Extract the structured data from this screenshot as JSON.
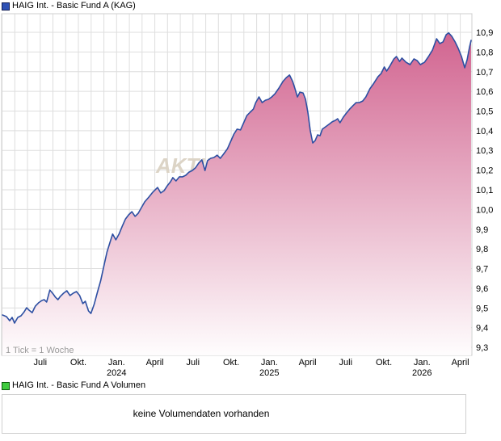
{
  "header": {
    "title": "HAIG Int. - Basic Fund A (KAG)"
  },
  "volume_section": {
    "title": "HAIG Int. - Basic Fund A Volumen",
    "legend_color": "#3ecb3e",
    "message": "keine Volumendaten vorhanden"
  },
  "chart_data": {
    "type": "area",
    "title": "HAIG Int. - Basic Fund A (KAG)",
    "tick_note": "1 Tick = 1 Woche",
    "watermark": "AKTIENCHECK.DE",
    "line_color": "#2d4fa2",
    "fill_top_color": "#cf5c8a",
    "fill_bottom_color": "#ffffff",
    "grid_color": "#dedede",
    "border_color": "#cfcfcf",
    "x_range": [
      2023.263,
      2026.321
    ],
    "x_ticks": [
      {
        "t": 2023.5,
        "label": "Juli"
      },
      {
        "t": 2023.75,
        "label": "Okt."
      },
      {
        "t": 2024.0,
        "label": "Jan.",
        "year": "2024"
      },
      {
        "t": 2024.25,
        "label": "April"
      },
      {
        "t": 2024.5,
        "label": "Juli"
      },
      {
        "t": 2024.75,
        "label": "Okt."
      },
      {
        "t": 2025.0,
        "label": "Jan.",
        "year": "2025"
      },
      {
        "t": 2025.25,
        "label": "April"
      },
      {
        "t": 2025.5,
        "label": "Juli"
      },
      {
        "t": 2025.75,
        "label": "Okt."
      },
      {
        "t": 2026.0,
        "label": "Jan.",
        "year": "2026"
      },
      {
        "t": 2026.25,
        "label": "April"
      }
    ],
    "y_ticks": [
      {
        "v": 10.9,
        "label": "10,9"
      },
      {
        "v": 10.8,
        "label": "10,8"
      },
      {
        "v": 10.7,
        "label": "10,7"
      },
      {
        "v": 10.6,
        "label": "10,6"
      },
      {
        "v": 10.5,
        "label": "10,5"
      },
      {
        "v": 10.4,
        "label": "10,4"
      },
      {
        "v": 10.3,
        "label": "10,3"
      },
      {
        "v": 10.2,
        "label": "10,2"
      },
      {
        "v": 10.1,
        "label": "10,1"
      },
      {
        "v": 10.0,
        "label": "10,0"
      },
      {
        "v": 9.9,
        "label": "9,9"
      },
      {
        "v": 9.8,
        "label": "9,8"
      },
      {
        "v": 9.7,
        "label": "9,7"
      },
      {
        "v": 9.6,
        "label": "9,6"
      },
      {
        "v": 9.5,
        "label": "9,5"
      },
      {
        "v": 9.4,
        "label": "9,4"
      },
      {
        "v": 9.3,
        "label": "9,3"
      }
    ],
    "series": [
      {
        "name": "HAIG Int. - Basic Fund A (KAG)",
        "points": [
          [
            2023.253,
            9.464
          ],
          [
            2023.279,
            9.456
          ],
          [
            2023.3,
            9.435
          ],
          [
            2023.316,
            9.452
          ],
          [
            2023.332,
            9.423
          ],
          [
            2023.353,
            9.452
          ],
          [
            2023.374,
            9.46
          ],
          [
            2023.395,
            9.48
          ],
          [
            2023.411,
            9.501
          ],
          [
            2023.426,
            9.489
          ],
          [
            2023.447,
            9.476
          ],
          [
            2023.468,
            9.509
          ],
          [
            2023.489,
            9.526
          ],
          [
            2023.511,
            9.538
          ],
          [
            2023.526,
            9.542
          ],
          [
            2023.542,
            9.53
          ],
          [
            2023.563,
            9.591
          ],
          [
            2023.584,
            9.571
          ],
          [
            2023.6,
            9.554
          ],
          [
            2023.616,
            9.542
          ],
          [
            2023.632,
            9.559
          ],
          [
            2023.653,
            9.575
          ],
          [
            2023.674,
            9.587
          ],
          [
            2023.695,
            9.563
          ],
          [
            2023.716,
            9.575
          ],
          [
            2023.737,
            9.583
          ],
          [
            2023.758,
            9.563
          ],
          [
            2023.779,
            9.522
          ],
          [
            2023.795,
            9.534
          ],
          [
            2023.816,
            9.485
          ],
          [
            2023.832,
            9.472
          ],
          [
            2023.853,
            9.518
          ],
          [
            2023.874,
            9.579
          ],
          [
            2023.895,
            9.637
          ],
          [
            2023.916,
            9.71
          ],
          [
            2023.937,
            9.784
          ],
          [
            2023.958,
            9.837
          ],
          [
            2023.974,
            9.875
          ],
          [
            2023.995,
            9.846
          ],
          [
            2024.016,
            9.875
          ],
          [
            2024.037,
            9.915
          ],
          [
            2024.058,
            9.952
          ],
          [
            2024.079,
            9.973
          ],
          [
            2024.1,
            9.989
          ],
          [
            2024.121,
            9.965
          ],
          [
            2024.142,
            9.981
          ],
          [
            2024.163,
            10.01
          ],
          [
            2024.184,
            10.039
          ],
          [
            2024.211,
            10.063
          ],
          [
            2024.237,
            10.088
          ],
          [
            2024.268,
            10.112
          ],
          [
            2024.289,
            10.084
          ],
          [
            2024.311,
            10.096
          ],
          [
            2024.332,
            10.121
          ],
          [
            2024.353,
            10.141
          ],
          [
            2024.368,
            10.162
          ],
          [
            2024.389,
            10.145
          ],
          [
            2024.411,
            10.166
          ],
          [
            2024.432,
            10.166
          ],
          [
            2024.453,
            10.174
          ],
          [
            2024.474,
            10.19
          ],
          [
            2024.495,
            10.198
          ],
          [
            2024.516,
            10.211
          ],
          [
            2024.537,
            10.235
          ],
          [
            2024.558,
            10.252
          ],
          [
            2024.579,
            10.198
          ],
          [
            2024.595,
            10.248
          ],
          [
            2024.616,
            10.26
          ],
          [
            2024.637,
            10.264
          ],
          [
            2024.658,
            10.276
          ],
          [
            2024.679,
            10.26
          ],
          [
            2024.7,
            10.281
          ],
          [
            2024.726,
            10.309
          ],
          [
            2024.747,
            10.346
          ],
          [
            2024.768,
            10.383
          ],
          [
            2024.789,
            10.408
          ],
          [
            2024.811,
            10.404
          ],
          [
            2024.832,
            10.441
          ],
          [
            2024.853,
            10.477
          ],
          [
            2024.874,
            10.494
          ],
          [
            2024.895,
            10.51
          ],
          [
            2024.911,
            10.543
          ],
          [
            2024.932,
            10.572
          ],
          [
            2024.953,
            10.543
          ],
          [
            2024.974,
            10.555
          ],
          [
            2024.995,
            10.56
          ],
          [
            2025.016,
            10.572
          ],
          [
            2025.037,
            10.588
          ],
          [
            2025.063,
            10.617
          ],
          [
            2025.089,
            10.65
          ],
          [
            2025.111,
            10.67
          ],
          [
            2025.132,
            10.683
          ],
          [
            2025.153,
            10.65
          ],
          [
            2025.168,
            10.613
          ],
          [
            2025.184,
            10.572
          ],
          [
            2025.2,
            10.596
          ],
          [
            2025.221,
            10.592
          ],
          [
            2025.237,
            10.56
          ],
          [
            2025.253,
            10.49
          ],
          [
            2025.268,
            10.4
          ],
          [
            2025.284,
            10.338
          ],
          [
            2025.3,
            10.35
          ],
          [
            2025.316,
            10.379
          ],
          [
            2025.332,
            10.375
          ],
          [
            2025.347,
            10.408
          ],
          [
            2025.368,
            10.42
          ],
          [
            2025.389,
            10.432
          ],
          [
            2025.411,
            10.445
          ],
          [
            2025.432,
            10.453
          ],
          [
            2025.447,
            10.461
          ],
          [
            2025.463,
            10.441
          ],
          [
            2025.484,
            10.469
          ],
          [
            2025.505,
            10.49
          ],
          [
            2025.526,
            10.51
          ],
          [
            2025.547,
            10.527
          ],
          [
            2025.568,
            10.543
          ],
          [
            2025.589,
            10.543
          ],
          [
            2025.611,
            10.551
          ],
          [
            2025.632,
            10.572
          ],
          [
            2025.658,
            10.613
          ],
          [
            2025.684,
            10.641
          ],
          [
            2025.711,
            10.674
          ],
          [
            2025.732,
            10.691
          ],
          [
            2025.753,
            10.724
          ],
          [
            2025.768,
            10.703
          ],
          [
            2025.789,
            10.728
          ],
          [
            2025.816,
            10.765
          ],
          [
            2025.832,
            10.777
          ],
          [
            2025.853,
            10.752
          ],
          [
            2025.868,
            10.769
          ],
          [
            2025.895,
            10.748
          ],
          [
            2025.921,
            10.736
          ],
          [
            2025.947,
            10.765
          ],
          [
            2025.968,
            10.756
          ],
          [
            2025.989,
            10.736
          ],
          [
            2026.016,
            10.748
          ],
          [
            2026.042,
            10.777
          ],
          [
            2026.068,
            10.81
          ],
          [
            2026.095,
            10.867
          ],
          [
            2026.116,
            10.843
          ],
          [
            2026.137,
            10.851
          ],
          [
            2026.158,
            10.888
          ],
          [
            2026.174,
            10.897
          ],
          [
            2026.195,
            10.879
          ],
          [
            2026.216,
            10.851
          ],
          [
            2026.237,
            10.818
          ],
          [
            2026.258,
            10.777
          ],
          [
            2026.279,
            10.72
          ],
          [
            2026.295,
            10.761
          ],
          [
            2026.311,
            10.826
          ],
          [
            2026.321,
            10.859
          ]
        ]
      }
    ]
  }
}
